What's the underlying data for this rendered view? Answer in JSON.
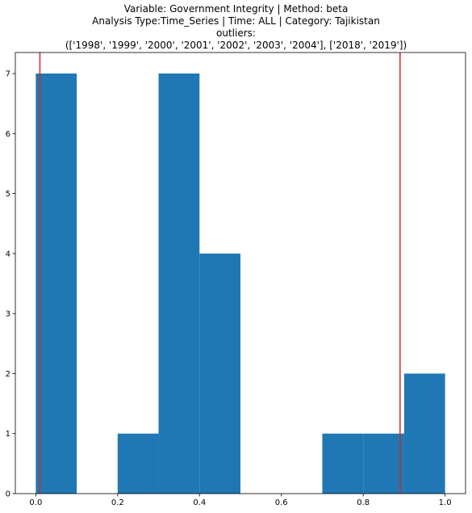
{
  "chart_data": {
    "type": "bar",
    "title_lines": [
      "Variable: Government Integrity | Method: beta",
      "Analysis Type:Time_Series | Time: ALL | Category: Tajikistan",
      "outliers:",
      "(['1998', '1999', '2000', '2001', '2002', '2003', '2004'], ['2018', '2019'])"
    ],
    "xlabel": "",
    "ylabel": "",
    "xlim": [
      -0.05,
      1.05
    ],
    "ylim": [
      0,
      7.35
    ],
    "x_ticks": [
      {
        "value": 0.0,
        "label": "0.0"
      },
      {
        "value": 0.2,
        "label": "0.2"
      },
      {
        "value": 0.4,
        "label": "0.4"
      },
      {
        "value": 0.6,
        "label": "0.6"
      },
      {
        "value": 0.8,
        "label": "0.8"
      },
      {
        "value": 1.0,
        "label": "1.0"
      }
    ],
    "y_ticks": [
      {
        "value": 0,
        "label": "0"
      },
      {
        "value": 1,
        "label": "1"
      },
      {
        "value": 2,
        "label": "2"
      },
      {
        "value": 3,
        "label": "3"
      },
      {
        "value": 4,
        "label": "4"
      },
      {
        "value": 5,
        "label": "5"
      },
      {
        "value": 6,
        "label": "6"
      },
      {
        "value": 7,
        "label": "7"
      }
    ],
    "bins": [
      {
        "start": 0.0,
        "end": 0.1,
        "count": 7
      },
      {
        "start": 0.1,
        "end": 0.2,
        "count": 0
      },
      {
        "start": 0.2,
        "end": 0.3,
        "count": 1
      },
      {
        "start": 0.3,
        "end": 0.4,
        "count": 7
      },
      {
        "start": 0.4,
        "end": 0.5,
        "count": 4
      },
      {
        "start": 0.5,
        "end": 0.6,
        "count": 0
      },
      {
        "start": 0.6,
        "end": 0.7,
        "count": 0
      },
      {
        "start": 0.7,
        "end": 0.8,
        "count": 1
      },
      {
        "start": 0.8,
        "end": 0.9,
        "count": 1
      },
      {
        "start": 0.9,
        "end": 1.0,
        "count": 2
      }
    ],
    "threshold_lines": [
      0.01,
      0.89
    ],
    "bar_color": "#1f77b4",
    "threshold_color": "#d62728",
    "grid": false
  }
}
